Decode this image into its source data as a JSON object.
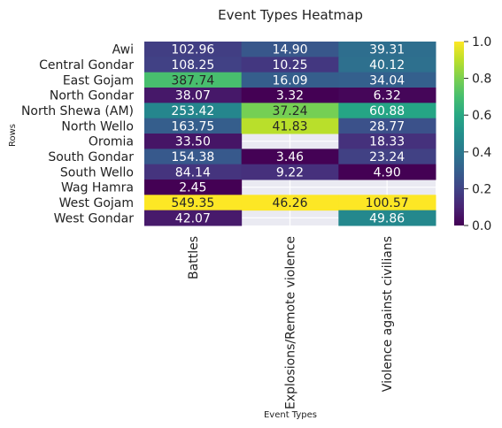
{
  "chart_data": {
    "type": "heatmap",
    "title": "Event Types Heatmap",
    "xlabel": "Event Types",
    "ylabel": "Rows",
    "columns": [
      "Battles",
      "Explosions/Remote violence",
      "Violence against civilians"
    ],
    "rows": [
      "Awi",
      "Central Gondar",
      "East Gojam",
      "North Gondar",
      "North Shewa (AM)",
      "North Wello",
      "Oromia",
      "South Gondar",
      "South Wello",
      "Wag Hamra",
      "West Gojam",
      "West Gondar"
    ],
    "values": [
      [
        102.96,
        14.9,
        39.31
      ],
      [
        108.25,
        10.25,
        40.12
      ],
      [
        387.74,
        16.09,
        34.04
      ],
      [
        38.07,
        3.32,
        6.32
      ],
      [
        253.42,
        37.24,
        60.88
      ],
      [
        163.75,
        41.83,
        28.77
      ],
      [
        33.5,
        null,
        18.33
      ],
      [
        154.38,
        3.46,
        23.24
      ],
      [
        84.14,
        9.22,
        4.9
      ],
      [
        2.45,
        null,
        null
      ],
      [
        549.35,
        46.26,
        100.57
      ],
      [
        42.07,
        null,
        49.86
      ]
    ],
    "labels": [
      [
        "102.96",
        "14.90",
        "39.31"
      ],
      [
        "108.25",
        "10.25",
        "40.12"
      ],
      [
        "387.74",
        "16.09",
        "34.04"
      ],
      [
        "38.07",
        "3.32",
        "6.32"
      ],
      [
        "253.42",
        "37.24",
        "60.88"
      ],
      [
        "163.75",
        "41.83",
        "28.77"
      ],
      [
        "33.50",
        "",
        "18.33"
      ],
      [
        "154.38",
        "3.46",
        "23.24"
      ],
      [
        "84.14",
        "9.22",
        "4.90"
      ],
      [
        "2.45",
        "",
        ""
      ],
      [
        "549.35",
        "46.26",
        "100.57"
      ],
      [
        "42.07",
        "",
        "49.86"
      ]
    ],
    "colorbar": {
      "colormap": "viridis",
      "range": [
        0,
        1
      ],
      "ticks": [
        0.0,
        0.2,
        0.4,
        0.6,
        0.8,
        1.0
      ],
      "tick_labels": [
        "0.0",
        "0.2",
        "0.4",
        "0.6",
        "0.8",
        "1.0"
      ]
    },
    "normalization": "per-column min-max",
    "grid": true
  }
}
